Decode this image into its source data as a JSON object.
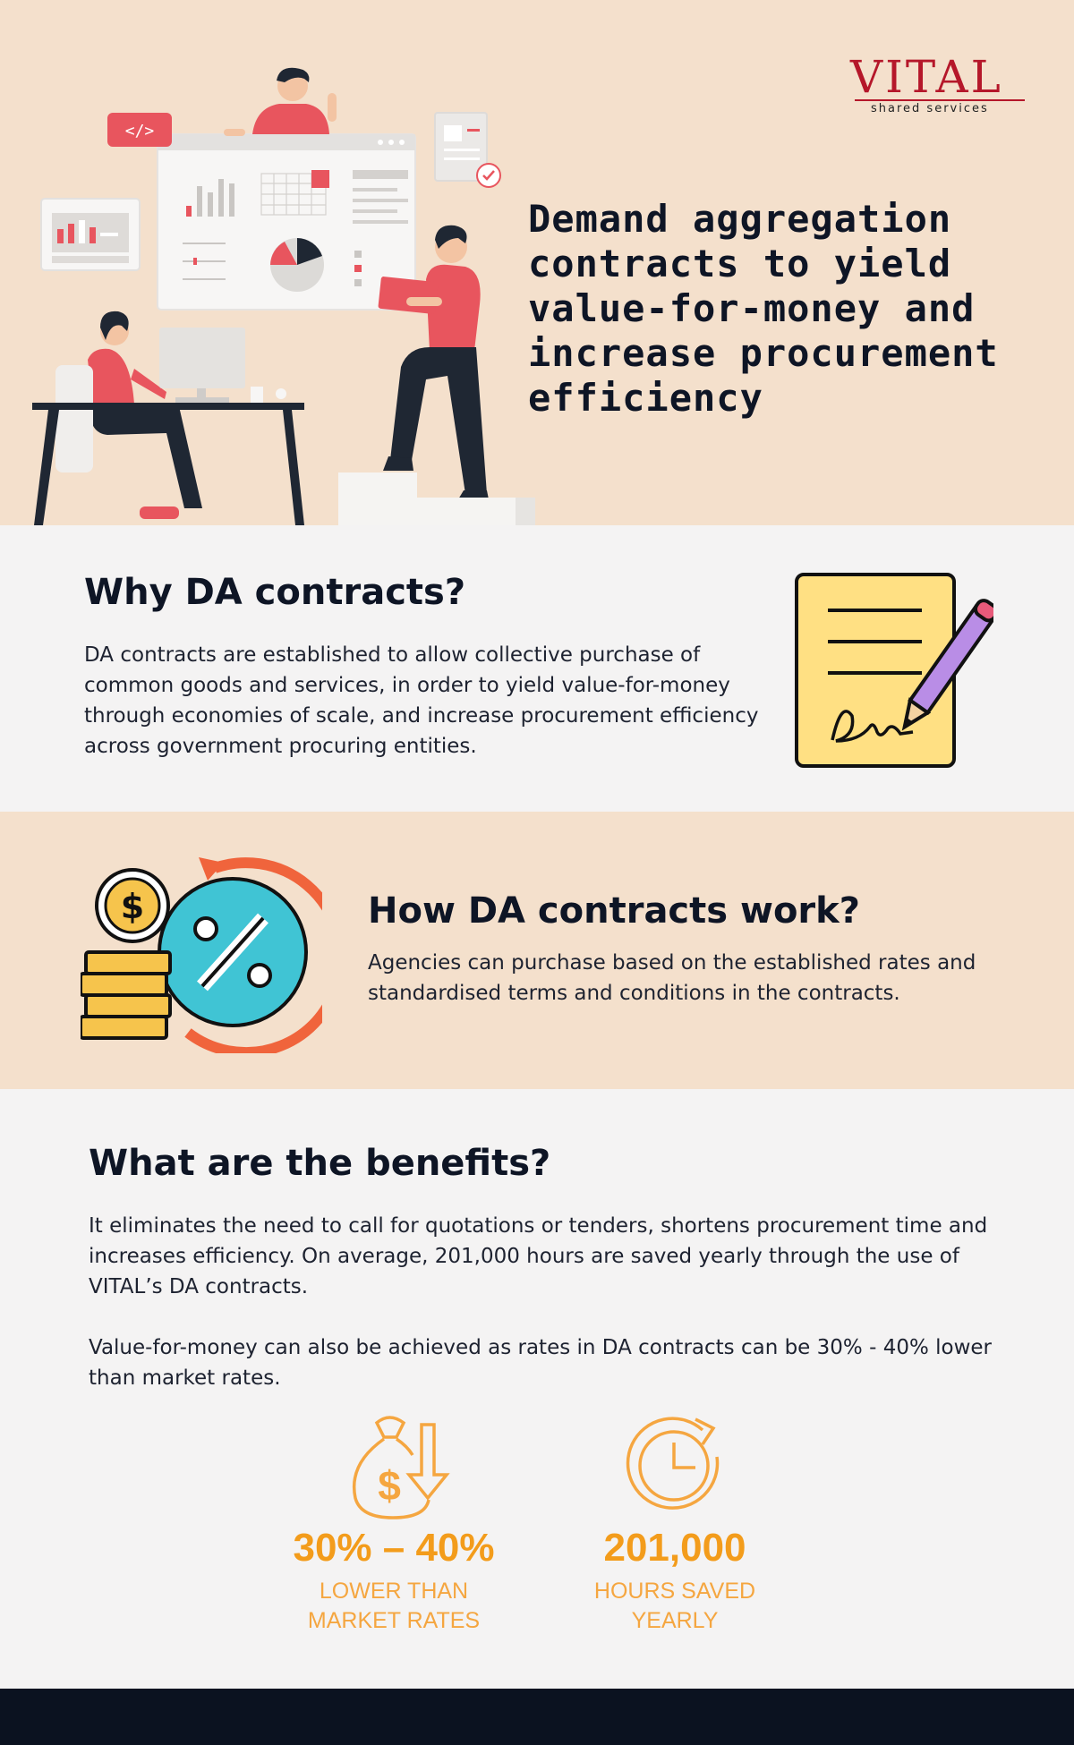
{
  "brand": {
    "name": "VITAL",
    "tagline": "shared services",
    "color": "#b5172a"
  },
  "hero": {
    "title": "Demand aggregation contracts to yield value-for-money and increase procurement efficiency",
    "background": "#f4e0cc",
    "code_badge": "</>"
  },
  "why": {
    "heading": "Why DA contracts?",
    "body": "DA contracts are established to allow collective purchase of common goods and services, in order to yield value-for-money through economies of scale, and increase procurement efficiency across government procuring entities.",
    "icon": "contract-signing-icon"
  },
  "how": {
    "heading": "How DA contracts work?",
    "body": "Agencies can purchase based on the established rates and standardised terms and conditions in the contracts.",
    "icon": "discount-coins-icon",
    "dollar_glyph": "$",
    "percent_glyph": "%"
  },
  "benefits": {
    "heading": "What are the benefits?",
    "paragraph_1": "It eliminates the need to call for quotations or tenders, shortens procurement time and increases efficiency. On average, 201,000 hours are saved yearly through the use of VITAL’s DA contracts.",
    "paragraph_2": "Value-for-money can also be achieved as rates in DA contracts can be 30% - 40% lower than market rates.",
    "stats": [
      {
        "value": "30% – 40%",
        "label_line_1": "LOWER THAN",
        "label_line_2": "MARKET RATES",
        "icon": "money-bag-down-icon",
        "icon_glyph": "$"
      },
      {
        "value": "201,000",
        "label_line_1": "HOURS SAVED",
        "label_line_2": "YEARLY",
        "icon": "clock-icon"
      }
    ],
    "accent": "#f39c1b"
  }
}
